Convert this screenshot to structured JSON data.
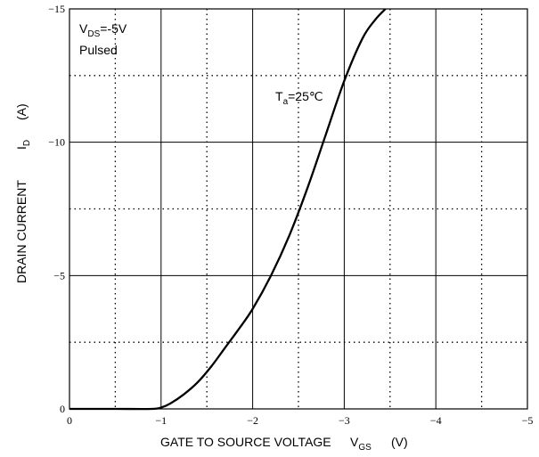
{
  "chart_data": {
    "type": "line",
    "xlabel": "GATE TO SOURCE VOLTAGE",
    "xlabel_symbol": "V",
    "xlabel_sub": "GS",
    "xlabel_unit": "(V)",
    "ylabel": "DRAIN CURRENT",
    "ylabel_symbol": "I",
    "ylabel_sub": "D",
    "ylabel_unit": "(A)",
    "xlim": [
      0,
      -5
    ],
    "ylim": [
      0,
      -15
    ],
    "x_ticks": [
      0,
      -1,
      -2,
      -3,
      -4,
      -5
    ],
    "x_tick_labels": [
      "0",
      "−1",
      "−2",
      "−3",
      "−4",
      "−5"
    ],
    "y_ticks": [
      0,
      -5,
      -10,
      -15
    ],
    "y_tick_labels": [
      "0",
      "−5",
      "−10",
      "−15"
    ],
    "x_minor_grid": [
      -0.5,
      -1.5,
      -2.5,
      -3.5,
      -4.5
    ],
    "y_minor_grid": [
      -2.5,
      -7.5,
      -12.5
    ],
    "grid": "major solid, minor dotted",
    "annotations": {
      "condition_symbol": "V",
      "condition_sub": "DS",
      "condition_value": "=-5V",
      "condition_mode": "Pulsed",
      "temp_symbol": "T",
      "temp_sub": "a",
      "temp_value": "=25℃"
    },
    "series": [
      {
        "points": [
          [
            0,
            0
          ],
          [
            -0.5,
            0
          ],
          [
            -0.9,
            0
          ],
          [
            -1.0,
            -0.05
          ],
          [
            -1.1,
            -0.2
          ],
          [
            -1.25,
            -0.55
          ],
          [
            -1.4,
            -1.0
          ],
          [
            -1.55,
            -1.6
          ],
          [
            -1.7,
            -2.3
          ],
          [
            -1.85,
            -3.0
          ],
          [
            -2.0,
            -3.75
          ],
          [
            -2.2,
            -5.0
          ],
          [
            -2.4,
            -6.5
          ],
          [
            -2.6,
            -8.3
          ],
          [
            -2.8,
            -10.3
          ],
          [
            -3.0,
            -12.3
          ],
          [
            -3.2,
            -13.9
          ],
          [
            -3.34,
            -14.6
          ],
          [
            -3.45,
            -15.0
          ]
        ]
      }
    ]
  }
}
